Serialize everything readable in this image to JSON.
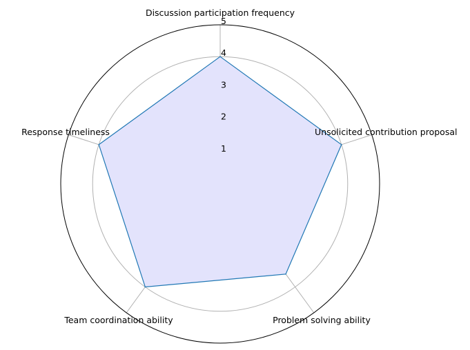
{
  "chart_data": {
    "type": "radar",
    "categories": [
      "Discussion participation frequency",
      "Unsolicited contribution proposal",
      "Problem solving ability",
      "Team coordination ability",
      "Response timeliness"
    ],
    "series": [
      {
        "values": [
          4,
          4,
          3.5,
          4,
          4
        ]
      }
    ],
    "rlim": [
      0,
      5
    ],
    "rticks": [
      "1",
      "2",
      "3",
      "4",
      "5"
    ],
    "grid": true,
    "colors": {
      "line": "#1f77b4",
      "fill": "#e3e3fc",
      "grid": "#b0b0b0",
      "frame": "#000000"
    }
  }
}
